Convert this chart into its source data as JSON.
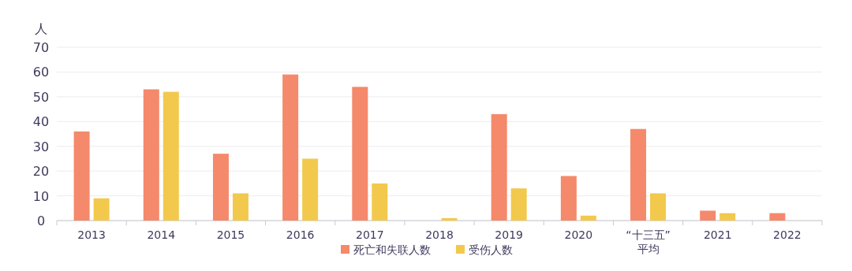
{
  "chart_data": {
    "type": "bar",
    "ylabel": "人",
    "categories": [
      "2013",
      "2014",
      "2015",
      "2016",
      "2017",
      "2018",
      "2019",
      "2020",
      "“十三五”\n平均",
      "2021",
      "2022"
    ],
    "series": [
      {
        "name": "死亡和失联人数",
        "color": "#f5896b",
        "values": [
          36,
          53,
          27,
          59,
          54,
          0,
          43,
          18,
          37,
          4,
          3
        ]
      },
      {
        "name": "受伤人数",
        "color": "#f2c94c",
        "values": [
          9,
          52,
          11,
          25,
          15,
          1,
          13,
          2,
          11,
          3,
          0
        ]
      }
    ],
    "ylim": [
      0,
      70
    ],
    "yticks": [
      0,
      10,
      20,
      30,
      40,
      50,
      60,
      70
    ],
    "grid": "y",
    "legend": "bottom"
  }
}
